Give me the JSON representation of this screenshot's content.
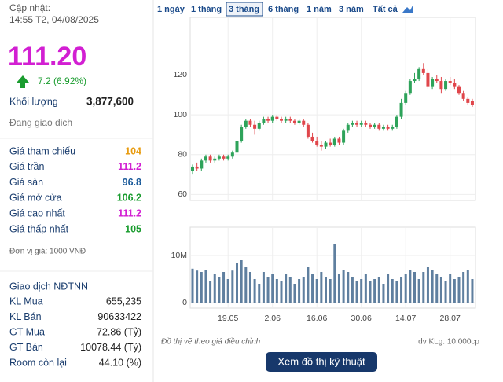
{
  "info": {
    "updated_label": "Cập nhật:",
    "updated_time": "14:55 T2, 04/08/2025",
    "price": "111.20",
    "change": "7.2 (6.92%)",
    "volume_label": "Khối lượng",
    "volume": "3,877,600",
    "status": "Đang giao dịch",
    "price_rows": [
      {
        "label": "Giá tham chiếu",
        "value": "104",
        "color": "#e89a0c"
      },
      {
        "label": "Giá trần",
        "value": "111.2",
        "color": "#d21fd2"
      },
      {
        "label": "Giá sàn",
        "value": "96.8",
        "color": "#1a5a9a"
      },
      {
        "label": "Giá mở cửa",
        "value": "106.2",
        "color": "#1a9c2f"
      },
      {
        "label": "Giá cao nhất",
        "value": "111.2",
        "color": "#d21fd2"
      },
      {
        "label": "Giá thấp nhất",
        "value": "105",
        "color": "#1a9c2f"
      }
    ],
    "unit": "Đơn vị giá: 1000 VNĐ",
    "foreign_title": "Giao dịch NĐTNN",
    "foreign_rows": [
      {
        "label": "KL Mua",
        "value": "655,235"
      },
      {
        "label": "KL Bán",
        "value": "90633422"
      },
      {
        "label": "GT Mua",
        "value": "72.86 (Tỷ)"
      },
      {
        "label": "GT Bán",
        "value": "10078.44 (Tỷ)"
      },
      {
        "label": "Room còn lại",
        "value": "44.10 (%)"
      }
    ]
  },
  "tabs": {
    "items": [
      "1 ngày",
      "1 tháng",
      "3 tháng",
      "6 tháng",
      "1 năm",
      "3 năm",
      "Tất cả"
    ],
    "active": 2
  },
  "button": "Xem đồ thị kỹ thuật",
  "chart_data": {
    "type": "candlestick",
    "note": "Đồ thị vẽ theo giá điều chỉnh",
    "volume_unit": "dv KLg: 10,000cp",
    "categories": [
      null,
      null,
      null,
      null,
      null,
      null,
      null,
      null,
      "19.05",
      null,
      null,
      null,
      null,
      null,
      null,
      null,
      null,
      null,
      "2.06",
      null,
      null,
      null,
      null,
      null,
      null,
      null,
      null,
      null,
      "16.06",
      null,
      null,
      null,
      null,
      null,
      null,
      null,
      null,
      null,
      "30.06",
      null,
      null,
      null,
      null,
      null,
      null,
      null,
      null,
      null,
      "14.07",
      null,
      null,
      null,
      null,
      null,
      null,
      null,
      null,
      null,
      "28.07",
      null,
      null,
      null,
      null,
      null
    ],
    "open": [
      72,
      74,
      73,
      77,
      79,
      77,
      78,
      79,
      78,
      79,
      81,
      87,
      94,
      97,
      95,
      93,
      96,
      98,
      97,
      99,
      98,
      97,
      98,
      97,
      96,
      97,
      95,
      89,
      87,
      85,
      84,
      86,
      85,
      88,
      86,
      92,
      95,
      96,
      95,
      96,
      95,
      94,
      95,
      93,
      94,
      93,
      94,
      99,
      106,
      111,
      117,
      118,
      123,
      121,
      114,
      118,
      117,
      113,
      117,
      116,
      114,
      111,
      108,
      107
    ],
    "high": [
      75,
      76,
      78,
      80,
      80,
      79,
      80,
      80,
      80,
      82,
      88,
      95,
      98,
      98,
      97,
      97,
      99,
      99,
      100,
      100,
      99,
      99,
      99,
      98,
      98,
      98,
      96,
      91,
      89,
      87,
      87,
      88,
      89,
      89,
      93,
      96,
      97,
      97,
      97,
      97,
      96,
      96,
      96,
      95,
      95,
      95,
      100,
      108,
      112,
      118,
      121,
      124,
      126,
      123,
      119,
      120,
      119,
      118,
      119,
      118,
      115,
      112,
      109,
      108
    ],
    "low": [
      70,
      72,
      72,
      76,
      76,
      76,
      77,
      77,
      77,
      78,
      80,
      86,
      93,
      94,
      90,
      92,
      95,
      96,
      96,
      97,
      96,
      96,
      96,
      95,
      95,
      94,
      88,
      86,
      84,
      82,
      83,
      84,
      84,
      85,
      85,
      91,
      94,
      94,
      94,
      94,
      93,
      93,
      92,
      92,
      92,
      92,
      93,
      98,
      105,
      110,
      116,
      117,
      120,
      113,
      113,
      116,
      111,
      112,
      115,
      113,
      110,
      107,
      105,
      104
    ],
    "close": [
      74,
      73,
      77,
      79,
      77,
      78,
      79,
      78,
      79,
      81,
      87,
      94,
      97,
      95,
      93,
      96,
      98,
      97,
      99,
      98,
      97,
      98,
      97,
      96,
      97,
      95,
      89,
      87,
      85,
      84,
      86,
      85,
      88,
      86,
      92,
      95,
      96,
      95,
      96,
      95,
      94,
      95,
      93,
      94,
      93,
      94,
      99,
      106,
      111,
      117,
      118,
      123,
      121,
      114,
      118,
      117,
      113,
      117,
      116,
      114,
      111,
      108,
      106,
      105
    ],
    "volume": [
      7200000,
      6800000,
      6500000,
      7000000,
      4500000,
      6000000,
      5500000,
      6500000,
      5000000,
      6800000,
      8500000,
      9000000,
      7500000,
      6500000,
      5000000,
      4000000,
      6500000,
      5500000,
      6000000,
      5000000,
      4500000,
      6000000,
      5500000,
      4000000,
      5000000,
      5500000,
      7500000,
      6000000,
      5000000,
      6500000,
      5500000,
      5000000,
      12500000,
      6000000,
      7000000,
      6500000,
      5500000,
      4500000,
      5000000,
      6000000,
      4500000,
      5000000,
      5500000,
      4000000,
      6000000,
      5000000,
      4500000,
      5500000,
      6000000,
      7000000,
      6500000,
      5000000,
      6500000,
      7500000,
      7000000,
      6000000,
      5500000,
      4500000,
      6000000,
      5000000,
      5500000,
      6500000,
      7000000,
      5000000
    ],
    "up_color": "#2ea35a",
    "down_color": "#e0464b",
    "volume_color": "#5f7f9f",
    "ylim": [
      57,
      149
    ],
    "yticks": [
      60,
      80,
      100,
      120
    ],
    "vol_ylim": [
      0,
      16000000
    ],
    "vol_yticks": [
      0,
      {
        "value": 10000000,
        "label": "10M"
      }
    ],
    "grid": true
  }
}
